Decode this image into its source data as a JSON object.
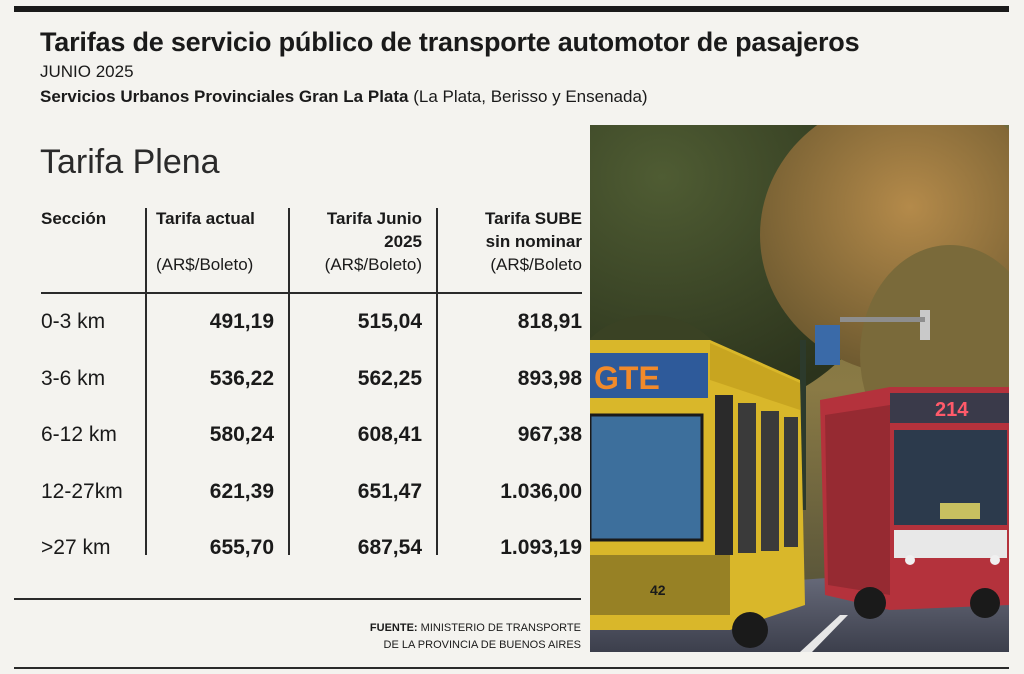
{
  "header": {
    "title": "Tarifas de servicio público de transporte automotor de pasajeros",
    "date": "JUNIO 2025",
    "subtitle_bold": "Servicios Urbanos Provinciales Gran La Plata",
    "subtitle_rest": " (La Plata, Berisso y Ensenada)"
  },
  "section_title": "Tarifa Plena",
  "columns": {
    "section": "Sección",
    "col1_name": "Tarifa actual",
    "col1_unit": "(AR$/Boleto)",
    "col2_line1": "Tarifa Junio",
    "col2_line2": "2025",
    "col2_unit": "(AR$/Boleto)",
    "col3_line1": "Tarifa SUBE",
    "col3_line2": "sin nominar",
    "col3_unit": "(AR$/Boleto"
  },
  "rows": [
    {
      "section": "0-3 km",
      "actual": "491,19",
      "junio": "515,04",
      "sube": "818,91"
    },
    {
      "section": "3-6 km",
      "actual": "536,22",
      "junio": "562,25",
      "sube": "893,98"
    },
    {
      "section": "6-12 km",
      "actual": "580,24",
      "junio": "608,41",
      "sube": "967,38"
    },
    {
      "section": "12-27km",
      "actual": "621,39",
      "junio": "651,47",
      "sube": "1.036,00"
    },
    {
      "section": ">27 km",
      "actual": "655,70",
      "junio": "687,54",
      "sube": "1.093,19"
    }
  ],
  "source": {
    "label": "FUENTE:",
    "line1": " MINISTERIO DE TRANSPORTE",
    "line2": "DE LA PROVINCIA DE BUENOS AIRES"
  },
  "photo": {
    "bus_left_sign": "GTE",
    "bus_left_number": "42",
    "bus_right_sign": "214"
  }
}
